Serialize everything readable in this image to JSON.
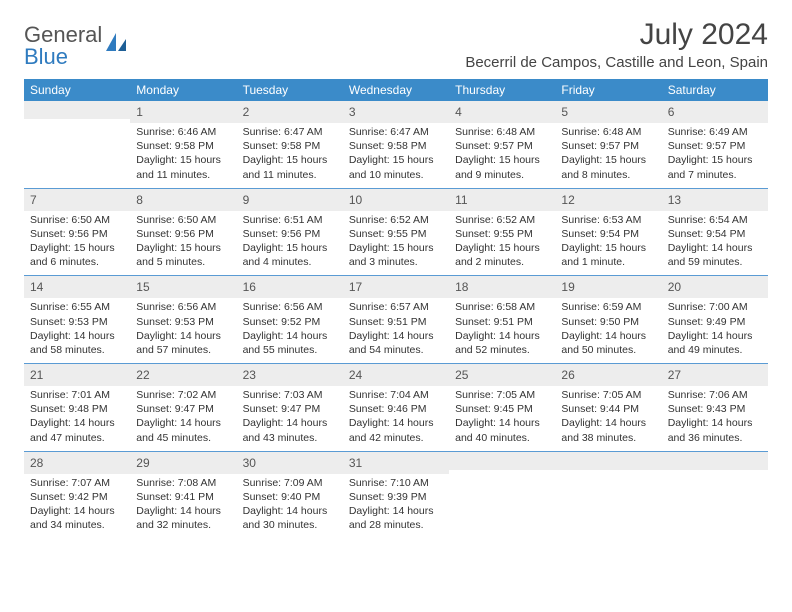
{
  "logo": {
    "text_gray": "General",
    "text_blue": "Blue"
  },
  "title": "July 2024",
  "location": "Becerril de Campos, Castille and Leon, Spain",
  "colors": {
    "header_bg": "#3b8bc9",
    "header_text": "#ffffff",
    "daynum_bg": "#ededed",
    "daynum_text": "#555555",
    "body_text": "#333333",
    "week_divider": "#5a9bd4",
    "logo_gray": "#555555",
    "logo_blue": "#2f7bbf",
    "title_text": "#444444",
    "page_bg": "#ffffff"
  },
  "typography": {
    "title_fontsize": 30,
    "location_fontsize": 15,
    "dayheader_fontsize": 12,
    "daynum_fontsize": 12,
    "cell_fontsize": 10.5,
    "logo_fontsize": 22
  },
  "day_headers": [
    "Sunday",
    "Monday",
    "Tuesday",
    "Wednesday",
    "Thursday",
    "Friday",
    "Saturday"
  ],
  "weeks": [
    [
      null,
      {
        "n": "1",
        "sunrise": "Sunrise: 6:46 AM",
        "sunset": "Sunset: 9:58 PM",
        "daylight": "Daylight: 15 hours and 11 minutes."
      },
      {
        "n": "2",
        "sunrise": "Sunrise: 6:47 AM",
        "sunset": "Sunset: 9:58 PM",
        "daylight": "Daylight: 15 hours and 11 minutes."
      },
      {
        "n": "3",
        "sunrise": "Sunrise: 6:47 AM",
        "sunset": "Sunset: 9:58 PM",
        "daylight": "Daylight: 15 hours and 10 minutes."
      },
      {
        "n": "4",
        "sunrise": "Sunrise: 6:48 AM",
        "sunset": "Sunset: 9:57 PM",
        "daylight": "Daylight: 15 hours and 9 minutes."
      },
      {
        "n": "5",
        "sunrise": "Sunrise: 6:48 AM",
        "sunset": "Sunset: 9:57 PM",
        "daylight": "Daylight: 15 hours and 8 minutes."
      },
      {
        "n": "6",
        "sunrise": "Sunrise: 6:49 AM",
        "sunset": "Sunset: 9:57 PM",
        "daylight": "Daylight: 15 hours and 7 minutes."
      }
    ],
    [
      {
        "n": "7",
        "sunrise": "Sunrise: 6:50 AM",
        "sunset": "Sunset: 9:56 PM",
        "daylight": "Daylight: 15 hours and 6 minutes."
      },
      {
        "n": "8",
        "sunrise": "Sunrise: 6:50 AM",
        "sunset": "Sunset: 9:56 PM",
        "daylight": "Daylight: 15 hours and 5 minutes."
      },
      {
        "n": "9",
        "sunrise": "Sunrise: 6:51 AM",
        "sunset": "Sunset: 9:56 PM",
        "daylight": "Daylight: 15 hours and 4 minutes."
      },
      {
        "n": "10",
        "sunrise": "Sunrise: 6:52 AM",
        "sunset": "Sunset: 9:55 PM",
        "daylight": "Daylight: 15 hours and 3 minutes."
      },
      {
        "n": "11",
        "sunrise": "Sunrise: 6:52 AM",
        "sunset": "Sunset: 9:55 PM",
        "daylight": "Daylight: 15 hours and 2 minutes."
      },
      {
        "n": "12",
        "sunrise": "Sunrise: 6:53 AM",
        "sunset": "Sunset: 9:54 PM",
        "daylight": "Daylight: 15 hours and 1 minute."
      },
      {
        "n": "13",
        "sunrise": "Sunrise: 6:54 AM",
        "sunset": "Sunset: 9:54 PM",
        "daylight": "Daylight: 14 hours and 59 minutes."
      }
    ],
    [
      {
        "n": "14",
        "sunrise": "Sunrise: 6:55 AM",
        "sunset": "Sunset: 9:53 PM",
        "daylight": "Daylight: 14 hours and 58 minutes."
      },
      {
        "n": "15",
        "sunrise": "Sunrise: 6:56 AM",
        "sunset": "Sunset: 9:53 PM",
        "daylight": "Daylight: 14 hours and 57 minutes."
      },
      {
        "n": "16",
        "sunrise": "Sunrise: 6:56 AM",
        "sunset": "Sunset: 9:52 PM",
        "daylight": "Daylight: 14 hours and 55 minutes."
      },
      {
        "n": "17",
        "sunrise": "Sunrise: 6:57 AM",
        "sunset": "Sunset: 9:51 PM",
        "daylight": "Daylight: 14 hours and 54 minutes."
      },
      {
        "n": "18",
        "sunrise": "Sunrise: 6:58 AM",
        "sunset": "Sunset: 9:51 PM",
        "daylight": "Daylight: 14 hours and 52 minutes."
      },
      {
        "n": "19",
        "sunrise": "Sunrise: 6:59 AM",
        "sunset": "Sunset: 9:50 PM",
        "daylight": "Daylight: 14 hours and 50 minutes."
      },
      {
        "n": "20",
        "sunrise": "Sunrise: 7:00 AM",
        "sunset": "Sunset: 9:49 PM",
        "daylight": "Daylight: 14 hours and 49 minutes."
      }
    ],
    [
      {
        "n": "21",
        "sunrise": "Sunrise: 7:01 AM",
        "sunset": "Sunset: 9:48 PM",
        "daylight": "Daylight: 14 hours and 47 minutes."
      },
      {
        "n": "22",
        "sunrise": "Sunrise: 7:02 AM",
        "sunset": "Sunset: 9:47 PM",
        "daylight": "Daylight: 14 hours and 45 minutes."
      },
      {
        "n": "23",
        "sunrise": "Sunrise: 7:03 AM",
        "sunset": "Sunset: 9:47 PM",
        "daylight": "Daylight: 14 hours and 43 minutes."
      },
      {
        "n": "24",
        "sunrise": "Sunrise: 7:04 AM",
        "sunset": "Sunset: 9:46 PM",
        "daylight": "Daylight: 14 hours and 42 minutes."
      },
      {
        "n": "25",
        "sunrise": "Sunrise: 7:05 AM",
        "sunset": "Sunset: 9:45 PM",
        "daylight": "Daylight: 14 hours and 40 minutes."
      },
      {
        "n": "26",
        "sunrise": "Sunrise: 7:05 AM",
        "sunset": "Sunset: 9:44 PM",
        "daylight": "Daylight: 14 hours and 38 minutes."
      },
      {
        "n": "27",
        "sunrise": "Sunrise: 7:06 AM",
        "sunset": "Sunset: 9:43 PM",
        "daylight": "Daylight: 14 hours and 36 minutes."
      }
    ],
    [
      {
        "n": "28",
        "sunrise": "Sunrise: 7:07 AM",
        "sunset": "Sunset: 9:42 PM",
        "daylight": "Daylight: 14 hours and 34 minutes."
      },
      {
        "n": "29",
        "sunrise": "Sunrise: 7:08 AM",
        "sunset": "Sunset: 9:41 PM",
        "daylight": "Daylight: 14 hours and 32 minutes."
      },
      {
        "n": "30",
        "sunrise": "Sunrise: 7:09 AM",
        "sunset": "Sunset: 9:40 PM",
        "daylight": "Daylight: 14 hours and 30 minutes."
      },
      {
        "n": "31",
        "sunrise": "Sunrise: 7:10 AM",
        "sunset": "Sunset: 9:39 PM",
        "daylight": "Daylight: 14 hours and 28 minutes."
      },
      null,
      null,
      null
    ]
  ]
}
